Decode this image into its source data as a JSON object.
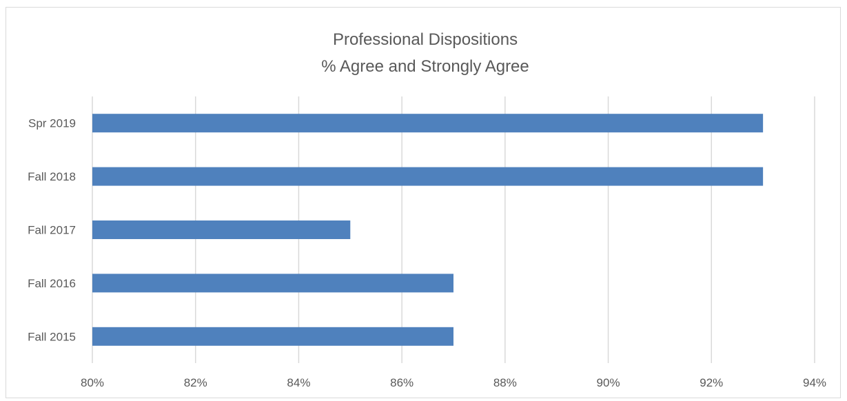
{
  "chart_data": {
    "type": "bar",
    "orientation": "horizontal",
    "title": "Professional Dispositions",
    "subtitle": "% Agree and Strongly Agree",
    "categories": [
      "Spr 2019",
      "Fall 2018",
      "Fall 2017",
      "Fall 2016",
      "Fall 2015"
    ],
    "values": [
      93,
      93,
      85,
      87,
      87
    ],
    "xlim": [
      80,
      94
    ],
    "xticks": [
      80,
      82,
      84,
      86,
      88,
      90,
      92,
      94
    ],
    "xtick_labels": [
      "80%",
      "82%",
      "84%",
      "86%",
      "88%",
      "90%",
      "92%",
      "94%"
    ],
    "grid": "vertical",
    "legend": "none",
    "colors": {
      "bar": "#4f81bd",
      "grid": "#d9d9d9",
      "text": "#595959"
    }
  }
}
